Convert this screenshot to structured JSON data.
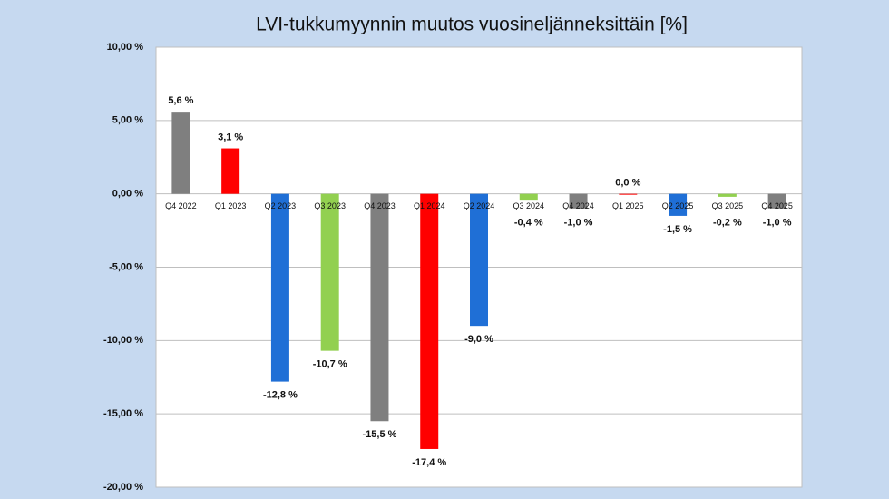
{
  "chart_data": {
    "type": "bar",
    "title": "LVI-tukkumyynnin muutos vuosineljänneksittäin [%]",
    "categories": [
      "Q4 2022",
      "Q1 2023",
      "Q2 2023",
      "Q3 2023",
      "Q4 2023",
      "Q1 2024",
      "Q2 2024",
      "Q3 2024",
      "Q4 2024",
      "Q1 2025",
      "Q2 2025",
      "Q3 2025",
      "Q4 2025"
    ],
    "values": [
      5.6,
      3.1,
      -12.8,
      -10.7,
      -15.5,
      -17.4,
      -9.0,
      -0.4,
      -1.0,
      0.0,
      -1.5,
      -0.2,
      -1.0
    ],
    "value_labels": [
      "5,6 %",
      "3,1 %",
      "-12,8 %",
      "-10,7 %",
      "-15,5 %",
      "-17,4 %",
      "-9,0 %",
      "-0,4 %",
      "-1,0 %",
      "0,0 %",
      "-1,5 %",
      "-0,2 %",
      "-1,0 %"
    ],
    "colors": [
      "#7f7f7f",
      "#ff0000",
      "#1f6fd6",
      "#92d050",
      "#7f7f7f",
      "#ff0000",
      "#1f6fd6",
      "#92d050",
      "#7f7f7f",
      "#ff0000",
      "#1f6fd6",
      "#92d050",
      "#7f7f7f"
    ],
    "ylim": [
      -20,
      10
    ],
    "yticks": [
      {
        "value": -20,
        "label": "-20,00 %"
      },
      {
        "value": -15,
        "label": "-15,00 %"
      },
      {
        "value": -10,
        "label": "-10,00 %"
      },
      {
        "value": -5,
        "label": "-5,00 %"
      },
      {
        "value": 0,
        "label": "0,00 %"
      },
      {
        "value": 5,
        "label": "5,00 %"
      },
      {
        "value": 10,
        "label": "10,00 %"
      }
    ],
    "grid": true
  }
}
